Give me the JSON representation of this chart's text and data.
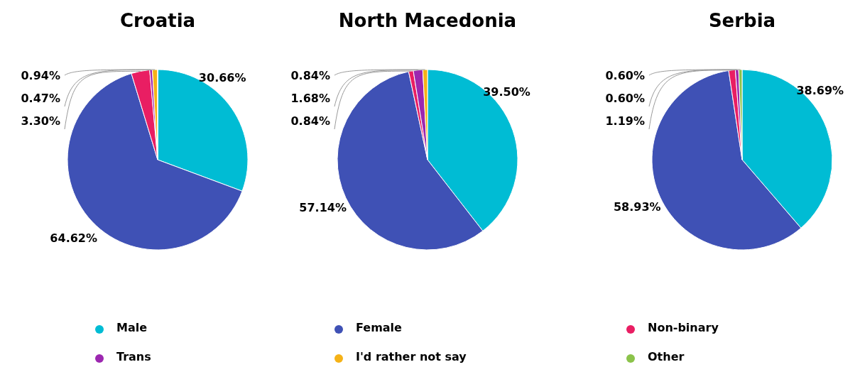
{
  "chart_data": [
    {
      "type": "pie",
      "title": "Croatia",
      "categories": [
        "Male",
        "Female",
        "Non-binary",
        "Trans",
        "I'd rather not say",
        "Other"
      ],
      "values": [
        30.66,
        64.62,
        3.3,
        0.47,
        0.94,
        0
      ],
      "value_labels": [
        "30.66%",
        "64.62%",
        "3.30%",
        "0.47%",
        "0.94%",
        null
      ],
      "colors": [
        "#00bcd4",
        "#3f51b5",
        "#e91e63",
        "#9c27b0",
        "#f5b217",
        "#8bc34a"
      ],
      "legend": "bottom"
    },
    {
      "type": "pie",
      "title": "North Macedonia",
      "categories": [
        null,
        null,
        null,
        null,
        null
      ],
      "values": [
        39.5,
        57.14,
        0.84,
        1.68,
        0.84
      ],
      "value_labels": [
        "39.50%",
        "57.14%",
        "0.84%",
        "1.68%",
        "0.84%"
      ],
      "colors": [
        "#00bcd4",
        "#3f51b5",
        "#e91e63",
        "#9c27b0",
        "#f5b217"
      ]
    },
    {
      "type": "pie",
      "title": "Serbia",
      "categories": [
        null,
        null,
        null,
        null,
        null
      ],
      "values": [
        38.69,
        58.93,
        1.19,
        0.6,
        0.6
      ],
      "value_labels": [
        "38.69%",
        "58.93%",
        "1.19%",
        "0.60%",
        "0.60%"
      ],
      "colors": [
        "#00bcd4",
        "#3f51b5",
        "#e91e63",
        "#9c27b0",
        "#8bc34a"
      ]
    }
  ]
}
